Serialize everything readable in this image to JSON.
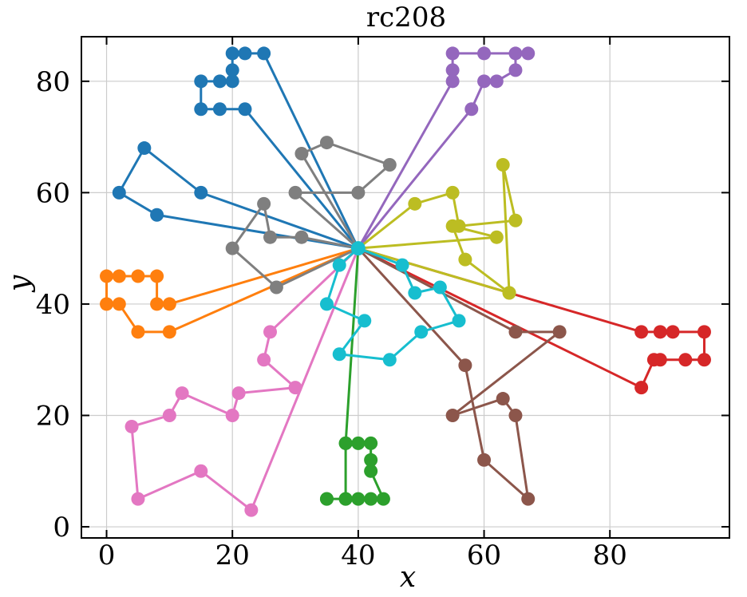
{
  "chart_data": {
    "type": "line",
    "title": "rc208",
    "xlabel": "x",
    "ylabel": "y",
    "xlim": [
      -4,
      99
    ],
    "ylim": [
      -2,
      88
    ],
    "xticks": [
      0,
      20,
      40,
      60,
      80
    ],
    "yticks": [
      0,
      20,
      40,
      60,
      80
    ],
    "grid": true,
    "legend": "none",
    "depot": {
      "x": 40,
      "y": 50
    },
    "series": [
      {
        "color": "#1f77b4",
        "points": [
          [
            40,
            50
          ],
          [
            8,
            56
          ],
          [
            2,
            60
          ],
          [
            6,
            68
          ],
          [
            15,
            60
          ],
          [
            40,
            50
          ],
          [
            22,
            75
          ],
          [
            18,
            75
          ],
          [
            15,
            75
          ],
          [
            15,
            80
          ],
          [
            18,
            80
          ],
          [
            20,
            80
          ],
          [
            20,
            82
          ],
          [
            20,
            85
          ],
          [
            22,
            85
          ],
          [
            25,
            85
          ],
          [
            40,
            50
          ]
        ]
      },
      {
        "color": "#ff7f0e",
        "points": [
          [
            40,
            50
          ],
          [
            10,
            40
          ],
          [
            8,
            40
          ],
          [
            8,
            45
          ],
          [
            5,
            45
          ],
          [
            2,
            45
          ],
          [
            0,
            45
          ],
          [
            0,
            40
          ],
          [
            2,
            40
          ],
          [
            5,
            35
          ],
          [
            10,
            35
          ],
          [
            40,
            50
          ]
        ]
      },
      {
        "color": "#2ca02c",
        "points": [
          [
            40,
            50
          ],
          [
            38,
            15
          ],
          [
            38,
            5
          ],
          [
            35,
            5
          ],
          [
            35,
            5
          ],
          [
            38,
            5
          ],
          [
            40,
            5
          ],
          [
            42,
            5
          ],
          [
            44,
            5
          ],
          [
            42,
            10
          ],
          [
            42,
            12
          ],
          [
            42,
            15
          ],
          [
            40,
            15
          ],
          [
            38,
            15
          ],
          [
            40,
            50
          ]
        ]
      },
      {
        "color": "#d62728",
        "points": [
          [
            40,
            50
          ],
          [
            85,
            25
          ],
          [
            87,
            30
          ],
          [
            88,
            30
          ],
          [
            92,
            30
          ],
          [
            95,
            30
          ],
          [
            95,
            35
          ],
          [
            90,
            35
          ],
          [
            88,
            35
          ],
          [
            85,
            35
          ],
          [
            40,
            50
          ]
        ]
      },
      {
        "color": "#9467bd",
        "points": [
          [
            40,
            50
          ],
          [
            58,
            75
          ],
          [
            60,
            80
          ],
          [
            62,
            80
          ],
          [
            65,
            82
          ],
          [
            65,
            85
          ],
          [
            67,
            85
          ],
          [
            60,
            85
          ],
          [
            55,
            85
          ],
          [
            55,
            82
          ],
          [
            55,
            80
          ],
          [
            40,
            50
          ]
        ]
      },
      {
        "color": "#8c564b",
        "points": [
          [
            40,
            50
          ],
          [
            57,
            29
          ],
          [
            60,
            12
          ],
          [
            67,
            5
          ],
          [
            65,
            20
          ],
          [
            63,
            23
          ],
          [
            55,
            20
          ],
          [
            72,
            35
          ],
          [
            65,
            35
          ],
          [
            40,
            50
          ]
        ]
      },
      {
        "color": "#e377c2",
        "points": [
          [
            40,
            50
          ],
          [
            23,
            3
          ],
          [
            15,
            10
          ],
          [
            5,
            5
          ],
          [
            4,
            18
          ],
          [
            10,
            20
          ],
          [
            12,
            24
          ],
          [
            20,
            20
          ],
          [
            21,
            24
          ],
          [
            30,
            25
          ],
          [
            25,
            30
          ],
          [
            26,
            35
          ],
          [
            40,
            50
          ]
        ]
      },
      {
        "color": "#7f7f7f",
        "points": [
          [
            40,
            50
          ],
          [
            27,
            43
          ],
          [
            20,
            50
          ],
          [
            25,
            58
          ],
          [
            26,
            52
          ],
          [
            31,
            52
          ],
          [
            40,
            50
          ],
          [
            30,
            60
          ],
          [
            40,
            60
          ],
          [
            45,
            65
          ],
          [
            35,
            69
          ],
          [
            31,
            67
          ],
          [
            40,
            50
          ]
        ]
      },
      {
        "color": "#bcbd22",
        "points": [
          [
            40,
            50
          ],
          [
            64,
            42
          ],
          [
            57,
            48
          ],
          [
            55,
            54
          ],
          [
            62,
            52
          ],
          [
            40,
            50
          ],
          [
            49,
            58
          ],
          [
            55,
            60
          ],
          [
            56,
            54
          ],
          [
            65,
            55
          ],
          [
            63,
            65
          ],
          [
            64,
            42
          ]
        ]
      },
      {
        "color": "#17becf",
        "points": [
          [
            40,
            50
          ],
          [
            47,
            47
          ],
          [
            49,
            42
          ],
          [
            53,
            43
          ],
          [
            56,
            37
          ],
          [
            50,
            35
          ],
          [
            45,
            30
          ],
          [
            37,
            31
          ],
          [
            41,
            37
          ],
          [
            35,
            40
          ],
          [
            37,
            47
          ],
          [
            40,
            50
          ]
        ]
      }
    ]
  }
}
